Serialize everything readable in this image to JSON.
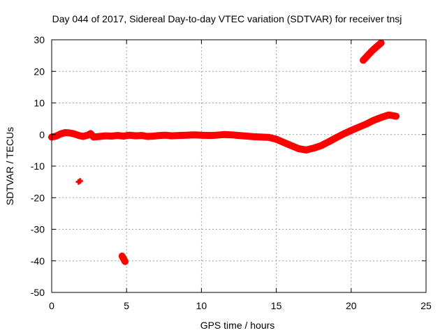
{
  "chart_data": {
    "type": "scatter",
    "title": "Day 044 of 2017, Sidereal Day-to-day VTEC variation (SDTVAR) for receiver tnsj",
    "xlabel": "GPS time / hours",
    "ylabel": "SDTVAR / TECUs",
    "xlim": [
      0,
      25
    ],
    "ylim": [
      -50,
      30
    ],
    "xticks": [
      0,
      5,
      10,
      15,
      20,
      25
    ],
    "yticks": [
      -50,
      -40,
      -30,
      -20,
      -10,
      0,
      10,
      20,
      30
    ],
    "grid": true,
    "color": "#ff0000",
    "series": [
      {
        "name": "main trace",
        "points": [
          [
            0.0,
            -0.8
          ],
          [
            0.3,
            -0.5
          ],
          [
            0.6,
            0.2
          ],
          [
            0.9,
            0.6
          ],
          [
            1.2,
            0.5
          ],
          [
            1.5,
            0.2
          ],
          [
            1.8,
            -0.3
          ],
          [
            2.1,
            -0.6
          ],
          [
            2.4,
            -0.2
          ],
          [
            2.6,
            0.3
          ],
          [
            2.8,
            -0.8
          ],
          [
            3.2,
            -0.6
          ],
          [
            3.6,
            -0.4
          ],
          [
            4.0,
            -0.5
          ],
          [
            4.4,
            -0.3
          ],
          [
            4.8,
            -0.5
          ],
          [
            5.2,
            -0.2
          ],
          [
            5.6,
            -0.4
          ],
          [
            6.0,
            -0.3
          ],
          [
            6.4,
            -0.6
          ],
          [
            6.8,
            -0.5
          ],
          [
            7.2,
            -0.3
          ],
          [
            7.6,
            -0.2
          ],
          [
            8.0,
            -0.4
          ],
          [
            8.5,
            -0.3
          ],
          [
            9.0,
            -0.2
          ],
          [
            9.5,
            -0.1
          ],
          [
            10.0,
            -0.2
          ],
          [
            10.5,
            -0.3
          ],
          [
            11.0,
            -0.2
          ],
          [
            11.5,
            0.0
          ],
          [
            12.0,
            -0.1
          ],
          [
            12.5,
            -0.3
          ],
          [
            13.0,
            -0.5
          ],
          [
            13.5,
            -0.7
          ],
          [
            14.0,
            -0.8
          ],
          [
            14.5,
            -0.9
          ],
          [
            15.0,
            -1.5
          ],
          [
            15.5,
            -2.5
          ],
          [
            16.0,
            -3.5
          ],
          [
            16.5,
            -4.5
          ],
          [
            17.0,
            -4.9
          ],
          [
            17.5,
            -4.3
          ],
          [
            18.0,
            -3.5
          ],
          [
            18.5,
            -2.3
          ],
          [
            19.0,
            -1.0
          ],
          [
            19.5,
            0.2
          ],
          [
            20.0,
            1.3
          ],
          [
            20.5,
            2.3
          ],
          [
            21.0,
            3.3
          ],
          [
            21.5,
            4.5
          ],
          [
            22.0,
            5.4
          ],
          [
            22.5,
            6.2
          ],
          [
            23.0,
            5.8
          ]
        ]
      },
      {
        "name": "upper arc",
        "points": [
          [
            20.8,
            23.5
          ],
          [
            21.1,
            25.0
          ],
          [
            21.4,
            26.5
          ],
          [
            21.7,
            27.8
          ],
          [
            22.0,
            29.0
          ]
        ]
      },
      {
        "name": "isolated points",
        "points": [
          [
            1.8,
            -15.0
          ],
          [
            1.9,
            -14.7
          ]
        ]
      },
      {
        "name": "lower points",
        "points": [
          [
            4.7,
            -38.5
          ],
          [
            4.8,
            -39.3
          ],
          [
            4.9,
            -40.2
          ]
        ]
      }
    ]
  }
}
